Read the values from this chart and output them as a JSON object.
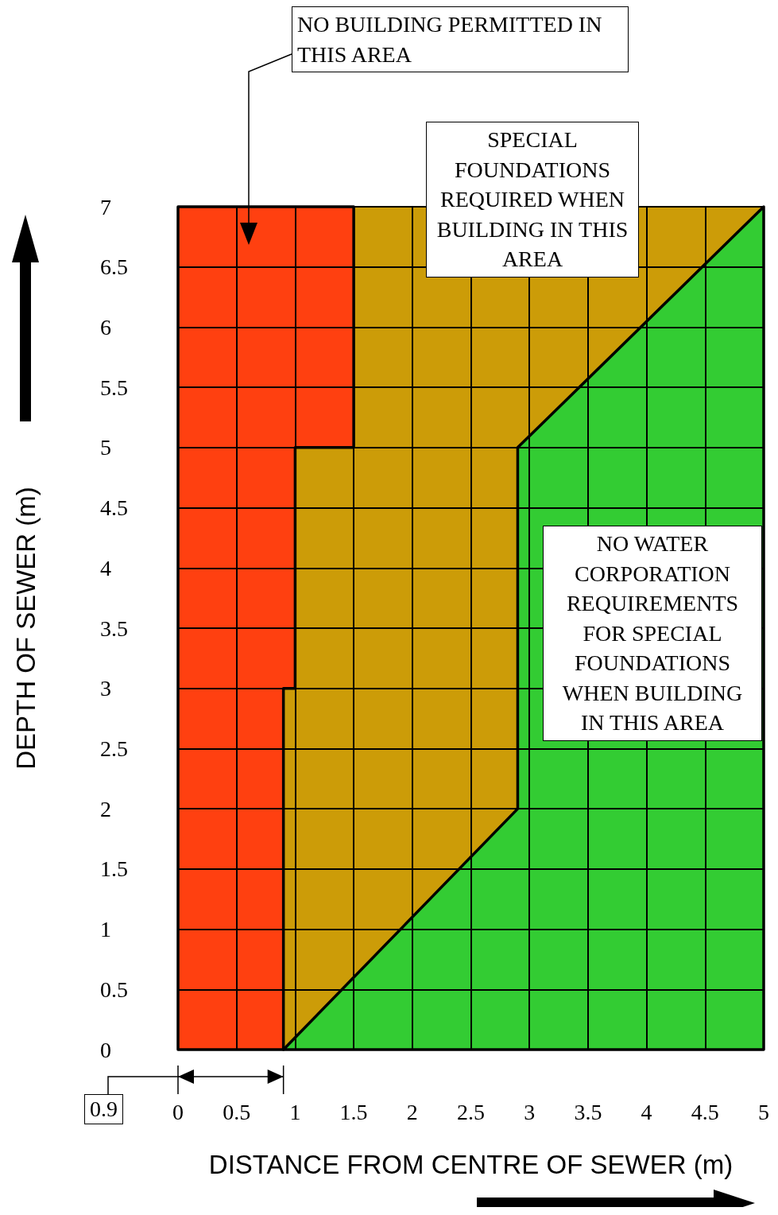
{
  "chart_data": {
    "type": "area",
    "xlabel": "DISTANCE FROM CENTRE OF SEWER (m)",
    "ylabel": "DEPTH OF SEWER (m)",
    "xlim": [
      0,
      5
    ],
    "ylim": [
      0,
      7
    ],
    "xticks": [
      0,
      0.5,
      1,
      1.5,
      2,
      2.5,
      3,
      3.5,
      4,
      4.5,
      5
    ],
    "yticks": [
      0,
      0.5,
      1,
      1.5,
      2,
      2.5,
      3,
      3.5,
      4,
      4.5,
      5,
      5.5,
      6,
      6.5,
      7
    ],
    "grid": true,
    "series": [
      {
        "color": "#ff4010",
        "x": [
          0,
          0.9,
          0.9,
          1,
          1,
          1.5,
          1.5,
          0
        ],
        "values": [
          0,
          0,
          3,
          3,
          5,
          5,
          7,
          7
        ]
      },
      {
        "color": "#33cc33",
        "x": [
          0.9,
          2.9,
          2.9,
          5,
          5
        ],
        "values": [
          0,
          2,
          5,
          7,
          0
        ]
      }
    ],
    "bands": [
      {
        "axis": "x",
        "from": 0,
        "to": 5,
        "color": "#cc9c08"
      }
    ],
    "annotations": [
      "NO BUILDING PERMITTED IN THIS AREA",
      "SPECIAL FOUNDATIONS REQUIRED WHEN BUILDING IN THIS AREA",
      "NO WATER CORPORATION REQUIREMENTS FOR SPECIAL FOUNDATIONS WHEN BUILDING IN THIS AREA",
      "0.9"
    ]
  }
}
